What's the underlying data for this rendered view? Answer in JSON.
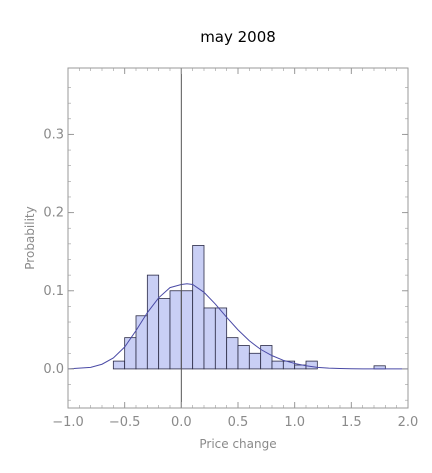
{
  "chart_data": {
    "type": "bar",
    "title": "may 2008",
    "xlabel": "Price change",
    "ylabel": "Probability",
    "xlim": [
      -1.0,
      2.0
    ],
    "ylim": [
      -0.05,
      0.385
    ],
    "x_ticks": [
      -1.0,
      -0.5,
      0.0,
      0.5,
      1.0,
      1.5,
      2.0
    ],
    "x_tick_labels": [
      "−1.0",
      "−0.5",
      "0.0",
      "0.5",
      "1.0",
      "1.5",
      "2.0"
    ],
    "y_ticks": [
      0.0,
      0.1,
      0.2,
      0.3
    ],
    "y_tick_labels": [
      "0.0",
      "0.1",
      "0.2",
      "0.3"
    ],
    "bin_width": 0.1,
    "bins": [
      {
        "start": -0.6,
        "end": -0.5,
        "value": 0.01
      },
      {
        "start": -0.5,
        "end": -0.4,
        "value": 0.04
      },
      {
        "start": -0.4,
        "end": -0.3,
        "value": 0.068
      },
      {
        "start": -0.3,
        "end": -0.2,
        "value": 0.12
      },
      {
        "start": -0.2,
        "end": -0.1,
        "value": 0.09
      },
      {
        "start": -0.1,
        "end": 0.0,
        "value": 0.1
      },
      {
        "start": 0.0,
        "end": 0.1,
        "value": 0.1
      },
      {
        "start": 0.1,
        "end": 0.2,
        "value": 0.158
      },
      {
        "start": 0.2,
        "end": 0.3,
        "value": 0.078
      },
      {
        "start": 0.3,
        "end": 0.4,
        "value": 0.078
      },
      {
        "start": 0.4,
        "end": 0.5,
        "value": 0.04
      },
      {
        "start": 0.5,
        "end": 0.6,
        "value": 0.03
      },
      {
        "start": 0.6,
        "end": 0.7,
        "value": 0.02
      },
      {
        "start": 0.7,
        "end": 0.8,
        "value": 0.03
      },
      {
        "start": 0.8,
        "end": 0.9,
        "value": 0.01
      },
      {
        "start": 0.9,
        "end": 1.0,
        "value": 0.01
      },
      {
        "start": 1.0,
        "end": 1.1,
        "value": 0.005
      },
      {
        "start": 1.1,
        "end": 1.2,
        "value": 0.01
      },
      {
        "start": 1.7,
        "end": 1.8,
        "value": 0.004
      }
    ],
    "fit_curve": {
      "type": "density",
      "x": [
        -1.0,
        -0.9,
        -0.8,
        -0.7,
        -0.6,
        -0.5,
        -0.4,
        -0.3,
        -0.2,
        -0.1,
        0.0,
        0.05,
        0.1,
        0.2,
        0.3,
        0.4,
        0.5,
        0.6,
        0.7,
        0.8,
        0.9,
        1.0,
        1.1,
        1.2,
        1.3,
        1.4,
        1.5,
        1.6,
        1.7,
        1.8,
        1.9,
        2.0
      ],
      "y": [
        0.0,
        0.001,
        0.002,
        0.006,
        0.014,
        0.028,
        0.049,
        0.072,
        0.091,
        0.104,
        0.108,
        0.109,
        0.108,
        0.098,
        0.083,
        0.066,
        0.05,
        0.036,
        0.025,
        0.017,
        0.011,
        0.007,
        0.004,
        0.002,
        0.001,
        0.0005,
        0.0002,
        0.0001,
        0.0,
        0.0,
        0.0,
        0.0
      ]
    },
    "grid": false,
    "colors": {
      "bar_fill": "#c9cff5",
      "bar_stroke": "#2b2b46",
      "curve": "#4a4aa6",
      "frame": "#9a9a9a",
      "zero_line": "#555555",
      "tick_text": "#8a8a8a"
    }
  }
}
